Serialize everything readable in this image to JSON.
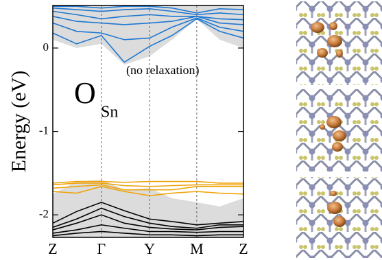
{
  "chart_data": {
    "type": "line",
    "y_label": "Energy (eV)",
    "label_main": "O",
    "label_sub": "Sn",
    "label_note": "(no relaxation)",
    "xlim": [
      0,
      4
    ],
    "ylim": [
      -2.27,
      0.51
    ],
    "xticks": [
      {
        "value": 0,
        "label": "Z"
      },
      {
        "value": 1.02,
        "label": "Γ"
      },
      {
        "value": 2.03,
        "label": "Y"
      },
      {
        "value": 3.02,
        "label": "M"
      },
      {
        "value": 4,
        "label": "Z"
      }
    ],
    "yticks": [
      0,
      -1,
      -2
    ],
    "x": [
      0,
      0.5,
      1.02,
      1.5,
      2.03,
      2.5,
      3.02,
      3.5,
      4
    ],
    "shaded_regions": [
      {
        "color": "#dcdcdc",
        "lower": [
          0.1,
          0.0,
          0.05,
          -0.2,
          -0.1,
          0.1,
          0.35,
          0.1,
          0.0
        ],
        "upper": [
          0.51,
          0.51,
          0.51,
          0.51,
          0.51,
          0.51,
          0.51,
          0.51,
          0.51
        ]
      },
      {
        "color": "#dcdcdc",
        "lower": [
          -2.27,
          -2.27,
          -2.27,
          -2.27,
          -2.27,
          -2.27,
          -2.27,
          -2.27,
          -2.27
        ],
        "upper": [
          -1.75,
          -1.6,
          -1.58,
          -1.7,
          -1.68,
          -1.8,
          -1.85,
          -1.9,
          -1.8
        ]
      }
    ],
    "series": [
      {
        "color": "#1f78d1",
        "values": [
          0.18,
          0.05,
          0.15,
          -0.17,
          0.02,
          0.15,
          0.35,
          0.2,
          0.12
        ]
      },
      {
        "color": "#1f78d1",
        "values": [
          0.3,
          0.2,
          0.18,
          0.1,
          0.12,
          0.25,
          0.36,
          0.25,
          0.2
        ]
      },
      {
        "color": "#1f78d1",
        "values": [
          0.38,
          0.32,
          0.3,
          0.28,
          0.3,
          0.32,
          0.38,
          0.3,
          0.28
        ]
      },
      {
        "color": "#1f78d1",
        "values": [
          0.44,
          0.4,
          0.35,
          0.38,
          0.4,
          0.38,
          0.38,
          0.35,
          0.34
        ]
      },
      {
        "color": "#1f78d1",
        "values": [
          0.48,
          0.46,
          0.44,
          0.46,
          0.47,
          0.44,
          0.4,
          0.42,
          0.4
        ]
      },
      {
        "color": "#1f78d1",
        "values": [
          0.5,
          0.5,
          0.48,
          0.5,
          0.5,
          0.48,
          0.42,
          0.47,
          0.46
        ]
      },
      {
        "color": "#f0a30a",
        "values": [
          -1.62,
          -1.6,
          -1.6,
          -1.61,
          -1.6,
          -1.6,
          -1.6,
          -1.62,
          -1.62
        ]
      },
      {
        "color": "#f0a30a",
        "values": [
          -1.64,
          -1.62,
          -1.62,
          -1.65,
          -1.66,
          -1.65,
          -1.64,
          -1.64,
          -1.64
        ]
      },
      {
        "color": "#f0a30a",
        "values": [
          -1.68,
          -1.66,
          -1.64,
          -1.7,
          -1.7,
          -1.7,
          -1.66,
          -1.66,
          -1.66
        ]
      },
      {
        "color": "#f0a30a",
        "values": [
          -1.72,
          -1.74,
          -1.66,
          -1.72,
          -1.77,
          -1.74,
          -1.72,
          -1.74,
          -1.75
        ]
      },
      {
        "color": "#000000",
        "values": [
          -2.1,
          -1.96,
          -1.85,
          -1.95,
          -2.05,
          -2.08,
          -2.12,
          -2.1,
          -2.08
        ]
      },
      {
        "color": "#000000",
        "values": [
          -2.15,
          -2.05,
          -1.92,
          -2.02,
          -2.1,
          -2.14,
          -2.16,
          -2.12,
          -2.12
        ]
      },
      {
        "color": "#000000",
        "values": [
          -2.18,
          -2.1,
          -2.0,
          -2.1,
          -2.15,
          -2.17,
          -2.18,
          -2.15,
          -2.14
        ]
      },
      {
        "color": "#000000",
        "values": [
          -2.22,
          -2.18,
          -2.12,
          -2.16,
          -2.2,
          -2.2,
          -2.21,
          -2.2,
          -2.2
        ]
      },
      {
        "color": "#000000",
        "values": [
          -2.25,
          -2.22,
          -2.2,
          -2.22,
          -2.24,
          -2.24,
          -2.25,
          -2.24,
          -2.24
        ]
      }
    ]
  }
}
